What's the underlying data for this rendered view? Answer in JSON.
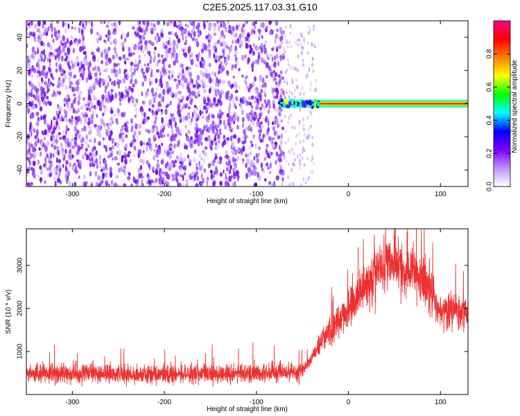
{
  "title": "C2E5.2025.117.03.31.G10",
  "chart_data": [
    {
      "type": "heatmap",
      "xlabel": "Height of straight line (km)",
      "ylabel": "Frequency (Hz)",
      "xlim": [
        -350,
        130
      ],
      "ylim": [
        -50,
        50
      ],
      "xticks": [
        -300,
        -200,
        -100,
        0,
        100
      ],
      "yticks": [
        -40,
        -20,
        0,
        20,
        40
      ],
      "grid": false,
      "noise_region_x": [
        -350,
        -70
      ],
      "sparse_noise_region_x": [
        -70,
        -35
      ],
      "signal": {
        "frequency": 0,
        "x_start": -75,
        "x_end": 130
      },
      "colorbar": {
        "label": "Normalized spectral amplitude",
        "range": [
          0,
          1
        ],
        "ticks": [
          0.0,
          0.2,
          0.4,
          0.6,
          0.8
        ],
        "colors": [
          "#ffffff",
          "#c090ff",
          "#7a00ff",
          "#0000ff",
          "#00ffff",
          "#00ff00",
          "#ffff00",
          "#ff8000",
          "#ff0000",
          "#ff0080"
        ]
      }
    },
    {
      "type": "line",
      "xlabel": "Height of straight line (km)",
      "ylabel": "SNR (10 * v/v)",
      "xlim": [
        -350,
        130
      ],
      "ylim": [
        0,
        3850
      ],
      "xticks": [
        -300,
        -200,
        -100,
        0,
        100
      ],
      "yticks": [
        1000,
        2000,
        3000
      ],
      "grid": false,
      "color": "#ee3030",
      "series": [
        {
          "x": [
            -350,
            -300,
            -250,
            -200,
            -150,
            -100,
            -70,
            -50,
            -40,
            -30,
            -20,
            -10,
            0,
            10,
            20,
            30,
            40,
            50,
            60,
            70,
            80,
            90,
            95,
            100,
            110,
            120,
            130
          ],
          "values": [
            480,
            490,
            480,
            470,
            480,
            500,
            520,
            540,
            850,
            1250,
            1500,
            1700,
            1950,
            2250,
            2600,
            2850,
            3000,
            3050,
            2950,
            2750,
            2600,
            2450,
            2100,
            1850,
            1950,
            1950,
            1900
          ]
        }
      ]
    }
  ]
}
